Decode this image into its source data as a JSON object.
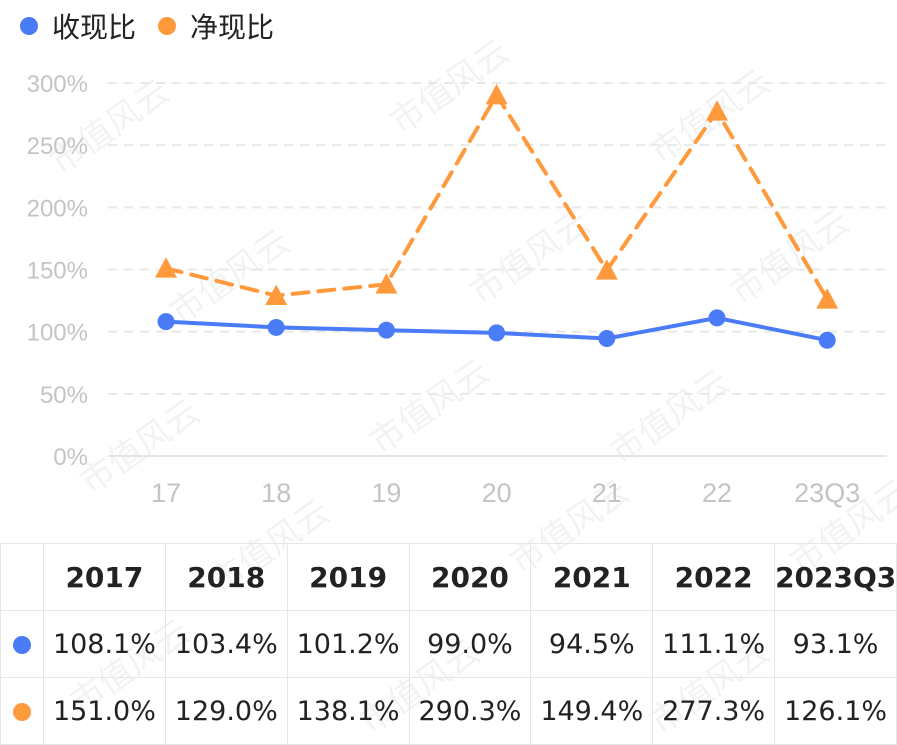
{
  "chart_data": {
    "type": "line",
    "categories": [
      "17",
      "18",
      "19",
      "20",
      "21",
      "22",
      "23Q3"
    ],
    "y_ticks": [
      "0%",
      "50%",
      "100%",
      "150%",
      "200%",
      "250%",
      "300%"
    ],
    "ylim": [
      0,
      300
    ],
    "grid": true,
    "legend_position": "top-left",
    "series": [
      {
        "name": "收现比",
        "color": "#4A7CF7",
        "marker": "circle",
        "line_style": "solid",
        "values": [
          108.1,
          103.4,
          101.2,
          99.0,
          94.5,
          111.1,
          93.1
        ]
      },
      {
        "name": "净现比",
        "color": "#FF9A3C",
        "marker": "triangle",
        "line_style": "dashed",
        "values": [
          151.0,
          129.0,
          138.1,
          290.3,
          149.4,
          277.3,
          126.1
        ]
      }
    ]
  },
  "table": {
    "headers": [
      "2017",
      "2018",
      "2019",
      "2020",
      "2021",
      "2022",
      "2023Q3"
    ],
    "rows": [
      {
        "color": "#4A7CF7",
        "cells": [
          "108.1%",
          "103.4%",
          "101.2%",
          "99.0%",
          "94.5%",
          "111.1%",
          "93.1%"
        ]
      },
      {
        "color": "#FF9A3C",
        "cells": [
          "151.0%",
          "129.0%",
          "138.1%",
          "290.3%",
          "149.4%",
          "277.3%",
          "126.1%"
        ]
      }
    ]
  },
  "watermark": "市值风云"
}
